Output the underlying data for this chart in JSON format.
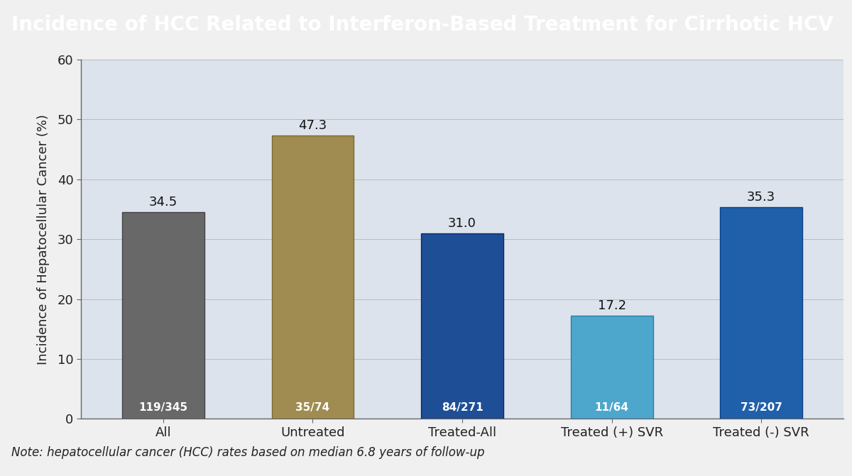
{
  "title": "Incidence of HCC Related to Interferon-Based Treatment for Cirrhotic HCV",
  "ylabel": "Incidence of Hepatocellular Cancer (%)",
  "note": "Note: hepatocellular cancer (HCC) rates based on median 6.8 years of follow-up",
  "categories": [
    "All",
    "Untreated",
    "Treated-All",
    "Treated (+) SVR",
    "Treated (-) SVR"
  ],
  "values": [
    34.5,
    47.3,
    31.0,
    17.2,
    35.3
  ],
  "ratios": [
    "119/345",
    "35/74",
    "84/271",
    "11/64",
    "73/207"
  ],
  "bar_colors": [
    "#686868",
    "#a08c50",
    "#1e4f96",
    "#4da6cc",
    "#2060aa"
  ],
  "bar_edge_colors": [
    "#444444",
    "#7a6a30",
    "#0a2a6a",
    "#2a7ea4",
    "#0a4088"
  ],
  "ylim": [
    0,
    60
  ],
  "yticks": [
    0,
    10,
    20,
    30,
    40,
    50,
    60
  ],
  "title_fontsize": 20,
  "axis_fontsize": 13,
  "tick_fontsize": 13,
  "value_fontsize": 13,
  "ratio_fontsize": 11,
  "note_fontsize": 12,
  "plot_bg_color": "#dde3ec",
  "title_bg_color": "#6d7880",
  "title_text_color": "#ffffff",
  "outer_bg_color": "#f0f0f0",
  "note_bg_color": "#f0f0f0",
  "bar_width": 0.55
}
